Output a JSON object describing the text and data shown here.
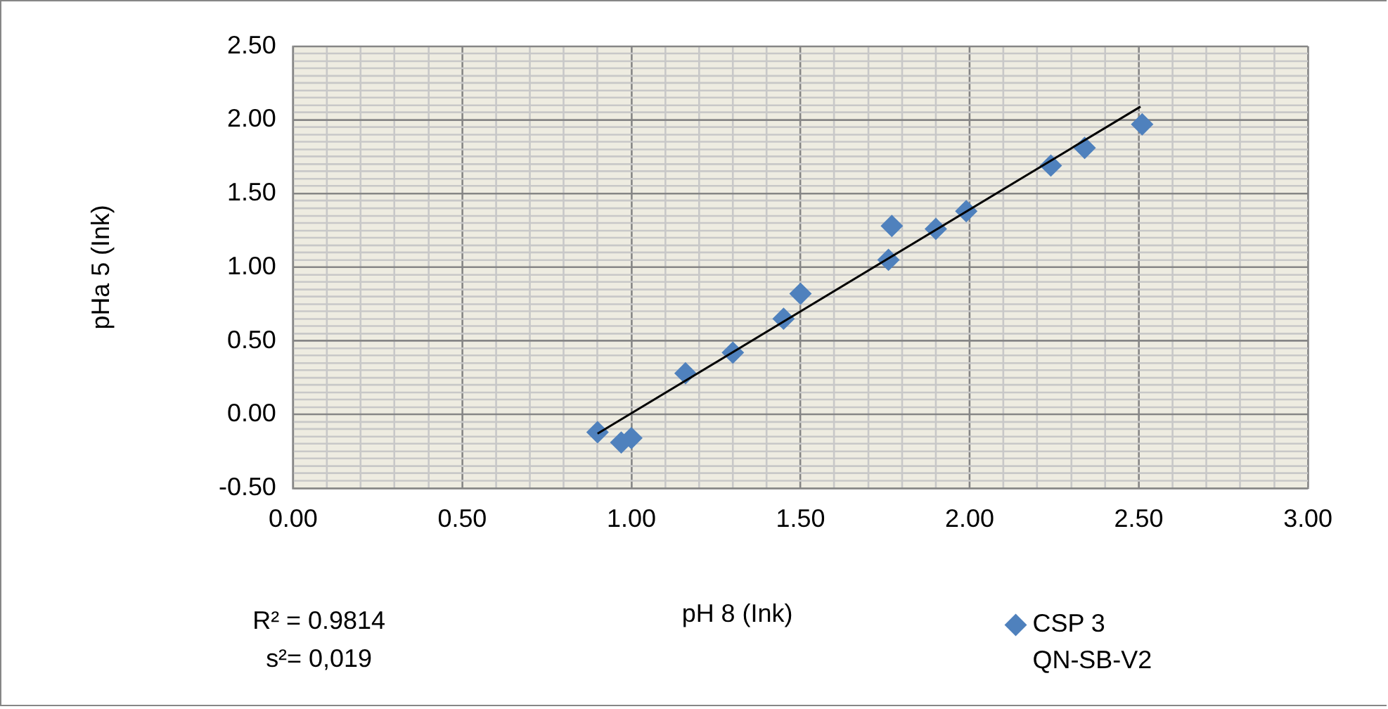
{
  "chart_data": {
    "type": "scatter",
    "xlabel": "pH 8 (Ink)",
    "ylabel": "pHa 5 (Ink)",
    "annotations": [
      "R² = 0.9814",
      "s²= 0,019"
    ],
    "series": [
      {
        "name": "CSP 3 QN-SB-V2",
        "color": "#4f81bd",
        "type": "scatter",
        "marker": "diamond",
        "x": [
          0.9,
          0.97,
          1.0,
          1.16,
          1.3,
          1.45,
          1.5,
          1.76,
          1.77,
          1.9,
          1.99,
          2.24,
          2.34,
          2.51
        ],
        "values": [
          -0.12,
          -0.19,
          -0.16,
          0.28,
          0.42,
          0.65,
          0.82,
          1.05,
          1.28,
          1.26,
          1.38,
          1.69,
          1.81,
          1.97
        ]
      },
      {
        "color": "#000000",
        "type": "line",
        "marker": "none",
        "line_style": "solid",
        "x": [
          0.9,
          2.505
        ],
        "values": [
          -0.13,
          2.09
        ]
      }
    ],
    "xlim": [
      0,
      3
    ],
    "ylim": [
      -0.5,
      2.5
    ],
    "xticks": [
      {
        "value": 0,
        "label": "0.00"
      },
      {
        "value": 0.1,
        "label": null
      },
      {
        "value": 0.2,
        "label": null
      },
      {
        "value": 0.3,
        "label": null
      },
      {
        "value": 0.4,
        "label": null
      },
      {
        "value": 0.5,
        "label": "0.50"
      },
      {
        "value": 0.6,
        "label": null
      },
      {
        "value": 0.7,
        "label": null
      },
      {
        "value": 0.8,
        "label": null
      },
      {
        "value": 0.9,
        "label": null
      },
      {
        "value": 1,
        "label": "1.00"
      },
      {
        "value": 1.1,
        "label": null
      },
      {
        "value": 1.2,
        "label": null
      },
      {
        "value": 1.3,
        "label": null
      },
      {
        "value": 1.4,
        "label": null
      },
      {
        "value": 1.5,
        "label": "1.50"
      },
      {
        "value": 1.6,
        "label": null
      },
      {
        "value": 1.7,
        "label": null
      },
      {
        "value": 1.8,
        "label": null
      },
      {
        "value": 1.9,
        "label": null
      },
      {
        "value": 2,
        "label": "2.00"
      },
      {
        "value": 2.1,
        "label": null
      },
      {
        "value": 2.2,
        "label": null
      },
      {
        "value": 2.3,
        "label": null
      },
      {
        "value": 2.4,
        "label": null
      },
      {
        "value": 2.5,
        "label": "2.50"
      },
      {
        "value": 2.6,
        "label": null
      },
      {
        "value": 2.7,
        "label": null
      },
      {
        "value": 2.8,
        "label": null
      },
      {
        "value": 2.9,
        "label": null
      },
      {
        "value": 3,
        "label": "3.00"
      }
    ],
    "yticks": [
      {
        "value": -0.5,
        "label": "-0.50"
      },
      {
        "value": -0.45,
        "label": null
      },
      {
        "value": -0.4,
        "label": null
      },
      {
        "value": -0.35,
        "label": null
      },
      {
        "value": -0.3,
        "label": null
      },
      {
        "value": -0.25,
        "label": null
      },
      {
        "value": -0.2,
        "label": null
      },
      {
        "value": -0.15,
        "label": null
      },
      {
        "value": -0.1,
        "label": null
      },
      {
        "value": -0.05,
        "label": null
      },
      {
        "value": 0,
        "label": "0.00"
      },
      {
        "value": 0.05,
        "label": null
      },
      {
        "value": 0.1,
        "label": null
      },
      {
        "value": 0.15,
        "label": null
      },
      {
        "value": 0.2,
        "label": null
      },
      {
        "value": 0.25,
        "label": null
      },
      {
        "value": 0.3,
        "label": null
      },
      {
        "value": 0.35,
        "label": null
      },
      {
        "value": 0.4,
        "label": null
      },
      {
        "value": 0.45,
        "label": null
      },
      {
        "value": 0.5,
        "label": "0.50"
      },
      {
        "value": 0.55,
        "label": null
      },
      {
        "value": 0.6,
        "label": null
      },
      {
        "value": 0.65,
        "label": null
      },
      {
        "value": 0.7,
        "label": null
      },
      {
        "value": 0.75,
        "label": null
      },
      {
        "value": 0.8,
        "label": null
      },
      {
        "value": 0.85,
        "label": null
      },
      {
        "value": 0.9,
        "label": null
      },
      {
        "value": 0.95,
        "label": null
      },
      {
        "value": 1,
        "label": "1.00"
      },
      {
        "value": 1.05,
        "label": null
      },
      {
        "value": 1.1,
        "label": null
      },
      {
        "value": 1.15,
        "label": null
      },
      {
        "value": 1.2,
        "label": null
      },
      {
        "value": 1.25,
        "label": null
      },
      {
        "value": 1.3,
        "label": null
      },
      {
        "value": 1.35,
        "label": null
      },
      {
        "value": 1.4,
        "label": null
      },
      {
        "value": 1.45,
        "label": null
      },
      {
        "value": 1.5,
        "label": "1.50"
      },
      {
        "value": 1.55,
        "label": null
      },
      {
        "value": 1.6,
        "label": null
      },
      {
        "value": 1.65,
        "label": null
      },
      {
        "value": 1.7,
        "label": null
      },
      {
        "value": 1.75,
        "label": null
      },
      {
        "value": 1.8,
        "label": null
      },
      {
        "value": 1.85,
        "label": null
      },
      {
        "value": 1.9,
        "label": null
      },
      {
        "value": 1.95,
        "label": null
      },
      {
        "value": 2,
        "label": "2.00"
      },
      {
        "value": 2.05,
        "label": null
      },
      {
        "value": 2.1,
        "label": null
      },
      {
        "value": 2.15,
        "label": null
      },
      {
        "value": 2.2,
        "label": null
      },
      {
        "value": 2.25,
        "label": null
      },
      {
        "value": 2.3,
        "label": null
      },
      {
        "value": 2.35,
        "label": null
      },
      {
        "value": 2.4,
        "label": null
      },
      {
        "value": 2.45,
        "label": null
      },
      {
        "value": 2.5,
        "label": "2.50"
      }
    ],
    "grid": true,
    "legend": "bottom right"
  }
}
